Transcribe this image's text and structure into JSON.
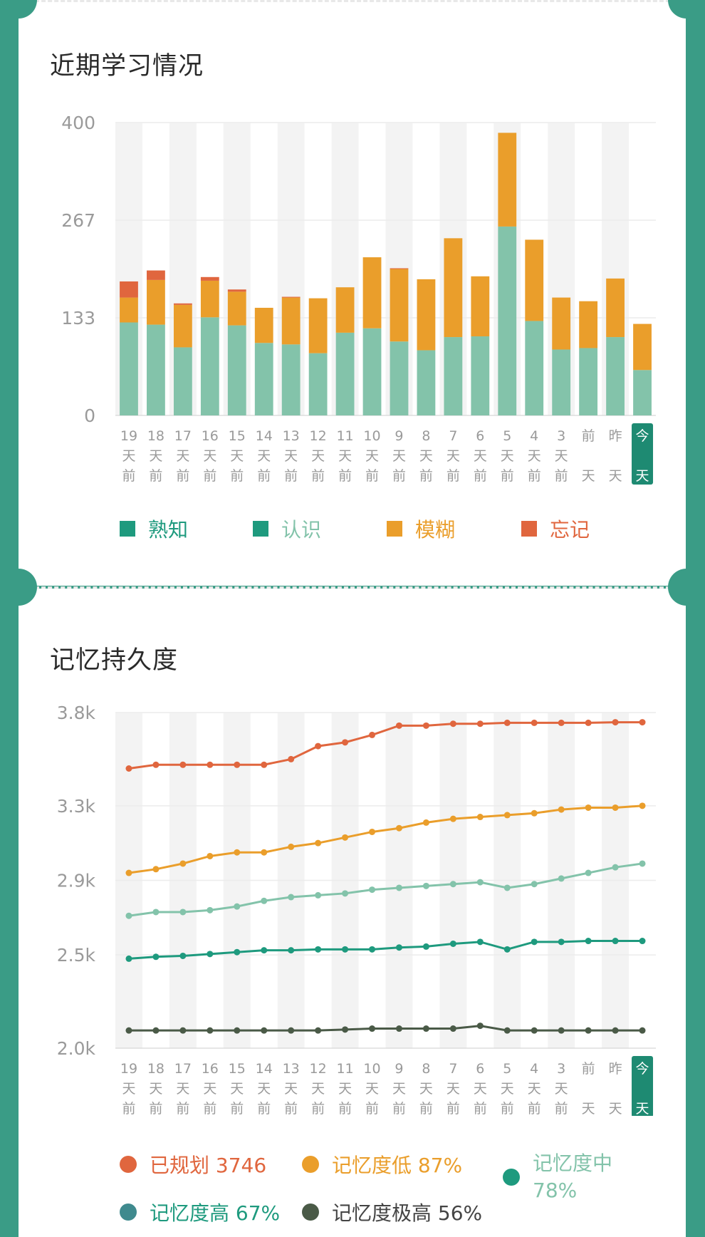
{
  "section1": {
    "title": "近期学习情况"
  },
  "section2": {
    "title": "记忆持久度"
  },
  "x_labels": [
    [
      "19",
      "天",
      "前"
    ],
    [
      "18",
      "天",
      "前"
    ],
    [
      "17",
      "天",
      "前"
    ],
    [
      "16",
      "天",
      "前"
    ],
    [
      "15",
      "天",
      "前"
    ],
    [
      "14",
      "天",
      "前"
    ],
    [
      "13",
      "天",
      "前"
    ],
    [
      "12",
      "天",
      "前"
    ],
    [
      "11",
      "天",
      "前"
    ],
    [
      "10",
      "天",
      "前"
    ],
    [
      "9",
      "天",
      "前"
    ],
    [
      "8",
      "天",
      "前"
    ],
    [
      "7",
      "天",
      "前"
    ],
    [
      "6",
      "天",
      "前"
    ],
    [
      "5",
      "天",
      "前"
    ],
    [
      "4",
      "天",
      "前"
    ],
    [
      "3",
      "天",
      "前"
    ],
    [
      "前",
      "天"
    ],
    [
      "昨",
      "天"
    ],
    [
      "今",
      "天"
    ]
  ],
  "colors": {
    "familiar": "#1e9a7e",
    "known": "#83c3aa",
    "fuzzy": "#ea9e2b",
    "forgot": "#e0663e",
    "planned": "#e0663e",
    "mem_low": "#ea9e2b",
    "mem_mid": "#83c3aa",
    "mem_high": "#1e9a7e",
    "mem_very_high": "#4a5a47",
    "today_badge": "#1e8a72"
  },
  "chart_data": [
    {
      "type": "bar",
      "stacked": true,
      "categories": [
        "19天前",
        "18天前",
        "17天前",
        "16天前",
        "15天前",
        "14天前",
        "13天前",
        "12天前",
        "11天前",
        "10天前",
        "9天前",
        "8天前",
        "7天前",
        "6天前",
        "5天前",
        "4天前",
        "3天前",
        "前天",
        "昨天",
        "今天"
      ],
      "yticks": [
        "400",
        "267",
        "133",
        "0"
      ],
      "ylim": [
        0,
        400
      ],
      "grid": true,
      "series": [
        {
          "name": "熟知",
          "values": [
            0,
            0,
            0,
            0,
            0,
            0,
            0,
            0,
            0,
            0,
            0,
            0,
            0,
            0,
            0,
            0,
            0,
            0,
            0,
            0
          ]
        },
        {
          "name": "认识",
          "values": [
            127,
            124,
            93,
            134,
            123,
            99,
            97,
            85,
            113,
            119,
            101,
            89,
            107,
            108,
            258,
            129,
            90,
            92,
            107,
            62
          ]
        },
        {
          "name": "模糊",
          "values": [
            34,
            61,
            58,
            50,
            46,
            48,
            64,
            75,
            62,
            97,
            99,
            97,
            135,
            82,
            128,
            111,
            71,
            64,
            80,
            63
          ]
        },
        {
          "name": "忘记",
          "values": [
            22,
            13,
            2,
            5,
            3,
            0,
            1,
            0,
            0,
            0,
            1,
            0,
            0,
            0,
            0,
            0,
            0,
            0,
            0,
            0
          ]
        }
      ]
    },
    {
      "type": "line",
      "categories": [
        "19天前",
        "18天前",
        "17天前",
        "16天前",
        "15天前",
        "14天前",
        "13天前",
        "12天前",
        "11天前",
        "10天前",
        "9天前",
        "8天前",
        "7天前",
        "6天前",
        "5天前",
        "4天前",
        "3天前",
        "前天",
        "昨天",
        "今天"
      ],
      "yticks": [
        "3.8k",
        "3.3k",
        "2.9k",
        "2.5k",
        "2.0k"
      ],
      "ylim": [
        2000,
        3800
      ],
      "grid": true,
      "legend_position": "bottom",
      "series": [
        {
          "name": "已规划 3746",
          "values": [
            3500,
            3520,
            3520,
            3520,
            3520,
            3520,
            3550,
            3620,
            3640,
            3680,
            3730,
            3730,
            3740,
            3740,
            3745,
            3745,
            3745,
            3745,
            3748,
            3748
          ]
        },
        {
          "name": "记忆度低 87%",
          "values": [
            2940,
            2960,
            2990,
            3030,
            3050,
            3050,
            3080,
            3100,
            3130,
            3160,
            3180,
            3210,
            3230,
            3240,
            3250,
            3260,
            3280,
            3290,
            3290,
            3300
          ]
        },
        {
          "name": "记忆度中 78%",
          "values": [
            2710,
            2730,
            2730,
            2740,
            2760,
            2790,
            2810,
            2820,
            2830,
            2850,
            2860,
            2870,
            2880,
            2890,
            2860,
            2880,
            2910,
            2940,
            2970,
            2990
          ]
        },
        {
          "name": "记忆度高 67%",
          "values": [
            2480,
            2490,
            2495,
            2505,
            2515,
            2525,
            2525,
            2530,
            2530,
            2530,
            2540,
            2545,
            2560,
            2570,
            2530,
            2570,
            2570,
            2575,
            2575,
            2575
          ]
        },
        {
          "name": "记忆度极高 56%",
          "values": [
            2095,
            2095,
            2095,
            2095,
            2095,
            2095,
            2095,
            2095,
            2100,
            2105,
            2105,
            2105,
            2105,
            2120,
            2095,
            2095,
            2095,
            2095,
            2095,
            2095
          ]
        }
      ]
    }
  ],
  "legend1": [
    {
      "label": "熟知",
      "color": "#1e9a7e",
      "text_color": "#1e9a7e"
    },
    {
      "label": "认识",
      "color": "#1e9a7e",
      "text_color": "#83c3aa"
    },
    {
      "label": "模糊",
      "color": "#ea9e2b",
      "text_color": "#ea9e2b"
    },
    {
      "label": "忘记",
      "color": "#e0663e",
      "text_color": "#e0663e"
    }
  ],
  "legend2": [
    {
      "label": "已规划 3746",
      "color": "#e0663e",
      "text_color": "#e0663e"
    },
    {
      "label": "记忆度低 87%",
      "color": "#ea9e2b",
      "text_color": "#ea9e2b"
    },
    {
      "label_lines": [
        "记忆度中",
        "78%"
      ],
      "color": "#1e9a7e",
      "text_color": "#83c3aa"
    },
    {
      "label": "记忆度高 67%",
      "color": "#3f8a8e",
      "text_color": "#1e9a7e"
    },
    {
      "label": "记忆度极高 56%",
      "color": "#4a5a47",
      "text_color": "#444444"
    }
  ]
}
